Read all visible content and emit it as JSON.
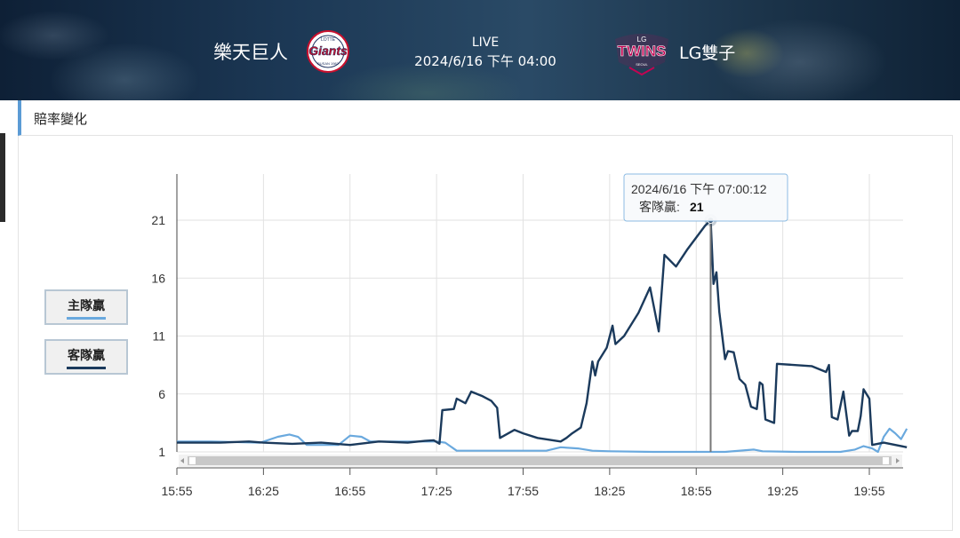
{
  "header": {
    "home_team": "樂天巨人",
    "away_team": "LG雙子",
    "status": "LIVE",
    "datetime": "2024/6/16 下午 04:00",
    "home_logo_text": "Giants",
    "home_logo_top": "LOTTE",
    "home_logo_bottom": "BUSAN 1982",
    "away_logo_text": "TWINS",
    "away_logo_top": "LG",
    "away_logo_bottom": "SEOUL"
  },
  "section": {
    "title": "賠率變化"
  },
  "legend": [
    {
      "label": "主隊贏",
      "color": "#6aa9de"
    },
    {
      "label": "客隊贏",
      "color": "#1b3a5c"
    }
  ],
  "tooltip": {
    "time": "2024/6/16 下午 07:00:12",
    "series_label": "客隊贏: ",
    "value": "21"
  },
  "chart_data": {
    "type": "line",
    "title": "",
    "xlabel": "",
    "ylabel": "",
    "x_unit": "time (2024/6/16)",
    "xlim": [
      "15:55",
      "20:08"
    ],
    "ylim": [
      1,
      24
    ],
    "yticks": [
      1,
      6,
      11,
      16,
      21
    ],
    "xticks": [
      "15:55",
      "16:25",
      "16:55",
      "17:25",
      "17:55",
      "18:25",
      "18:55",
      "19:25",
      "19:55"
    ],
    "grid": true,
    "legend_position": "left",
    "series": [
      {
        "name": "主隊贏",
        "color": "#6aa9de",
        "points": [
          [
            "15:55",
            1.9
          ],
          [
            "16:07",
            1.9
          ],
          [
            "16:24",
            1.8
          ],
          [
            "16:30",
            2.3
          ],
          [
            "16:34",
            2.5
          ],
          [
            "16:37",
            2.3
          ],
          [
            "16:40",
            1.6
          ],
          [
            "16:51",
            1.6
          ],
          [
            "16:55",
            2.4
          ],
          [
            "16:59",
            2.3
          ],
          [
            "17:02",
            1.9
          ],
          [
            "17:10",
            1.9
          ],
          [
            "17:25",
            1.9
          ],
          [
            "17:28",
            1.8
          ],
          [
            "17:32",
            1.1
          ],
          [
            "17:40",
            1.1
          ],
          [
            "17:55",
            1.1
          ],
          [
            "18:03",
            1.1
          ],
          [
            "18:08",
            1.4
          ],
          [
            "18:14",
            1.3
          ],
          [
            "18:19",
            1.1
          ],
          [
            "18:25",
            1.05
          ],
          [
            "18:40",
            1.0
          ],
          [
            "18:55",
            1.0
          ],
          [
            "19:05",
            1.0
          ],
          [
            "19:15",
            1.2
          ],
          [
            "19:18",
            1.05
          ],
          [
            "19:30",
            1.0
          ],
          [
            "19:45",
            1.0
          ],
          [
            "19:50",
            1.2
          ],
          [
            "19:53",
            1.5
          ],
          [
            "19:56",
            1.3
          ],
          [
            "19:58",
            1.0
          ],
          [
            "20:00",
            2.3
          ],
          [
            "20:02",
            3.0
          ],
          [
            "20:04",
            2.6
          ],
          [
            "20:06",
            2.1
          ],
          [
            "20:08",
            3.0
          ]
        ]
      },
      {
        "name": "客隊贏",
        "color": "#1b3a5c",
        "points": [
          [
            "15:55",
            1.8
          ],
          [
            "16:10",
            1.8
          ],
          [
            "16:20",
            1.9
          ],
          [
            "16:25",
            1.8
          ],
          [
            "16:35",
            1.7
          ],
          [
            "16:45",
            1.8
          ],
          [
            "16:55",
            1.6
          ],
          [
            "17:05",
            1.9
          ],
          [
            "17:15",
            1.8
          ],
          [
            "17:21",
            1.95
          ],
          [
            "17:24",
            2.0
          ],
          [
            "17:26",
            1.7
          ],
          [
            "17:27",
            4.6
          ],
          [
            "17:31",
            4.7
          ],
          [
            "17:32",
            5.6
          ],
          [
            "17:35",
            5.2
          ],
          [
            "17:37",
            6.2
          ],
          [
            "17:41",
            5.8
          ],
          [
            "17:44",
            5.4
          ],
          [
            "17:46",
            4.8
          ],
          [
            "17:47",
            2.2
          ],
          [
            "17:52",
            2.9
          ],
          [
            "17:55",
            2.6
          ],
          [
            "18:00",
            2.2
          ],
          [
            "18:08",
            1.9
          ],
          [
            "18:10",
            2.2
          ],
          [
            "18:12",
            2.6
          ],
          [
            "18:15",
            3.1
          ],
          [
            "18:17",
            5.2
          ],
          [
            "18:19",
            8.8
          ],
          [
            "18:20",
            7.6
          ],
          [
            "18:21",
            8.8
          ],
          [
            "18:24",
            10.0
          ],
          [
            "18:26",
            11.9
          ],
          [
            "18:27",
            10.3
          ],
          [
            "18:30",
            11.0
          ],
          [
            "18:35",
            13.0
          ],
          [
            "18:39",
            15.2
          ],
          [
            "18:42",
            11.4
          ],
          [
            "18:44",
            18.0
          ],
          [
            "18:48",
            17.0
          ],
          [
            "18:52",
            18.5
          ],
          [
            "18:58",
            20.5
          ],
          [
            "19:00",
            21.0
          ],
          [
            "19:01",
            15.5
          ],
          [
            "19:02",
            16.5
          ],
          [
            "19:03",
            13.1
          ],
          [
            "19:05",
            9.0
          ],
          [
            "19:06",
            9.7
          ],
          [
            "19:08",
            9.6
          ],
          [
            "19:10",
            7.3
          ],
          [
            "19:12",
            6.8
          ],
          [
            "19:14",
            4.9
          ],
          [
            "19:16",
            4.7
          ],
          [
            "19:17",
            7.0
          ],
          [
            "19:18",
            6.8
          ],
          [
            "19:19",
            3.8
          ],
          [
            "19:22",
            3.5
          ],
          [
            "19:23",
            8.6
          ],
          [
            "19:35",
            8.4
          ],
          [
            "19:40",
            7.9
          ],
          [
            "19:41",
            8.5
          ],
          [
            "19:42",
            4.0
          ],
          [
            "19:44",
            3.8
          ],
          [
            "19:46",
            6.2
          ],
          [
            "19:48",
            2.4
          ],
          [
            "19:49",
            2.8
          ],
          [
            "19:51",
            2.8
          ],
          [
            "19:52",
            4.1
          ],
          [
            "19:53",
            6.4
          ],
          [
            "19:55",
            5.6
          ],
          [
            "19:56",
            1.6
          ],
          [
            "20:00",
            1.8
          ],
          [
            "20:08",
            1.4
          ]
        ]
      }
    ]
  }
}
